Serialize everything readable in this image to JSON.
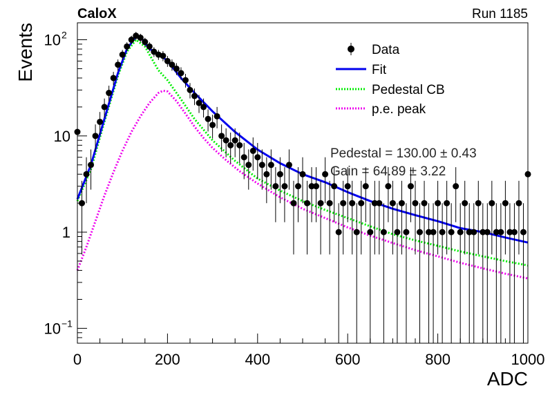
{
  "header": {
    "experiment": "CaloX",
    "run": "Run 1185"
  },
  "colors": {
    "data": "#000000",
    "fit": "#0000ee",
    "pedestal": "#00ee00",
    "pe_peak": "#ee00ee"
  },
  "stats": {
    "pedestal": "Pedestal = 130.00 ± 0.43",
    "gain": "Gain = 64.89 ± 3.22"
  },
  "chart_data": {
    "type": "scatter",
    "xlabel": "ADC",
    "ylabel": "Events",
    "xlim": [
      0,
      1000
    ],
    "ylim": [
      0.07,
      150
    ],
    "yscale": "log",
    "x_ticks": [
      0,
      200,
      400,
      600,
      800,
      1000
    ],
    "y_ticks": [
      {
        "value": 0.1,
        "label": "10",
        "sup": "−1"
      },
      {
        "value": 1,
        "label": "1",
        "sup": ""
      },
      {
        "value": 10,
        "label": "10",
        "sup": ""
      },
      {
        "value": 100,
        "label": "10",
        "sup": "2"
      }
    ],
    "grid": false,
    "legend_position": "top-right",
    "legend": [
      {
        "key": "data",
        "label": "Data",
        "style": "marker"
      },
      {
        "key": "fit",
        "label": "Fit",
        "style": "solid"
      },
      {
        "key": "pedestal",
        "label": "Pedestal CB",
        "style": "dotted"
      },
      {
        "key": "pe_peak",
        "label": "p.e. peak",
        "style": "dotted"
      }
    ],
    "series": [
      {
        "name": "Data",
        "x": [
          0,
          10,
          20,
          30,
          40,
          50,
          60,
          70,
          80,
          90,
          100,
          110,
          120,
          130,
          140,
          150,
          160,
          170,
          180,
          190,
          200,
          210,
          220,
          230,
          240,
          250,
          260,
          270,
          280,
          290,
          300,
          310,
          320,
          330,
          340,
          350,
          360,
          370,
          380,
          390,
          400,
          410,
          420,
          430,
          440,
          450,
          460,
          470,
          480,
          490,
          500,
          510,
          520,
          530,
          540,
          550,
          560,
          570,
          580,
          590,
          600,
          610,
          620,
          630,
          640,
          650,
          660,
          670,
          680,
          690,
          700,
          710,
          720,
          730,
          740,
          750,
          760,
          770,
          780,
          790,
          800,
          810,
          820,
          830,
          840,
          850,
          860,
          870,
          880,
          890,
          900,
          910,
          920,
          930,
          940,
          950,
          960,
          970,
          980,
          990,
          1000
        ],
        "y": [
          11,
          2,
          4,
          5,
          10,
          14,
          20,
          28,
          40,
          55,
          70,
          85,
          100,
          110,
          105,
          95,
          85,
          75,
          70,
          68,
          60,
          55,
          50,
          45,
          38,
          30,
          26,
          22,
          20,
          15,
          13,
          16,
          10,
          9,
          8,
          9,
          8,
          6,
          5,
          7,
          6,
          5,
          4,
          5,
          3,
          4,
          3,
          5,
          2,
          3,
          4,
          2,
          3,
          3,
          2,
          4,
          2,
          3,
          1,
          2,
          3,
          2,
          1,
          2,
          3,
          1,
          2,
          2,
          1,
          3,
          2,
          1,
          2,
          1,
          3,
          2,
          1,
          2,
          1,
          1,
          2,
          1,
          2,
          1,
          3,
          1,
          2,
          1,
          1,
          2,
          1,
          1,
          2,
          1,
          1,
          2,
          1,
          1,
          2,
          1,
          4
        ]
      },
      {
        "name": "Fit",
        "x": [
          0,
          30,
          60,
          90,
          110,
          130,
          145,
          160,
          180,
          200,
          230,
          260,
          300,
          350,
          400,
          450,
          500,
          550,
          600,
          650,
          700,
          750,
          800,
          850,
          900,
          950,
          1000
        ],
        "y": [
          2.2,
          5,
          15,
          45,
          80,
          108,
          100,
          80,
          72,
          60,
          40,
          28,
          18,
          11,
          7.2,
          5.2,
          4,
          3.3,
          2.6,
          2.1,
          1.75,
          1.5,
          1.3,
          1.1,
          1,
          0.88,
          0.78
        ]
      },
      {
        "name": "Pedestal CB",
        "x": [
          0,
          30,
          60,
          90,
          110,
          130,
          150,
          170,
          180,
          200,
          230,
          260,
          300,
          350,
          400,
          450,
          500,
          550,
          600,
          650,
          700,
          750,
          800,
          850,
          900,
          950,
          1000
        ],
        "y": [
          2.1,
          4.5,
          14,
          42,
          75,
          100,
          85,
          58,
          48,
          38,
          24,
          15,
          9,
          5.5,
          3.6,
          2.7,
          2.1,
          1.7,
          1.4,
          1.15,
          0.95,
          0.82,
          0.72,
          0.63,
          0.56,
          0.5,
          0.45
        ]
      },
      {
        "name": "p.e. peak",
        "x": [
          0,
          20,
          40,
          60,
          80,
          100,
          120,
          140,
          160,
          180,
          190,
          200,
          220,
          240,
          260,
          280,
          300,
          330,
          360,
          400,
          450,
          500,
          550,
          600,
          650,
          700,
          750,
          800,
          850,
          900,
          950,
          1000
        ],
        "y": [
          0.4,
          0.7,
          1.3,
          2.4,
          4.2,
          7,
          11,
          16,
          22,
          28,
          29.5,
          29,
          23,
          17,
          12.5,
          9.5,
          7.5,
          5.6,
          4.3,
          3.2,
          2.3,
          1.75,
          1.4,
          1.12,
          0.92,
          0.77,
          0.65,
          0.56,
          0.48,
          0.42,
          0.37,
          0.33
        ]
      }
    ]
  }
}
